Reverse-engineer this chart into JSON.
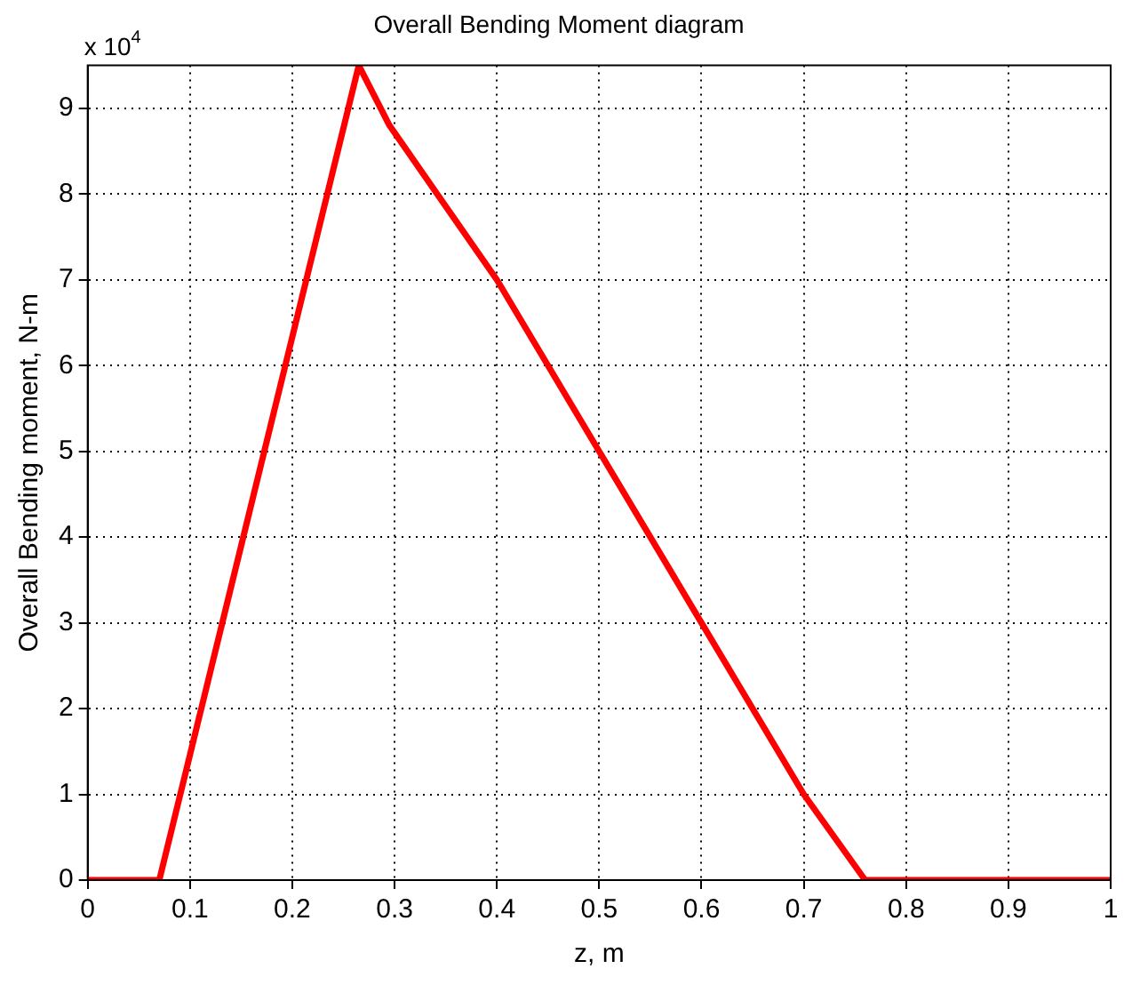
{
  "chart_data": {
    "type": "line",
    "title": "Overall Bending Moment diagram",
    "xlabel": "z, m",
    "ylabel": "Overall Bending moment, N-m",
    "annotations": [
      "x 10$^{4}$"
    ],
    "x": [
      0,
      0.07,
      0.265,
      0.295,
      0.4,
      0.5,
      0.6,
      0.7,
      0.76,
      1
    ],
    "series": [
      {
        "color": "#ff0000",
        "values": [
          0,
          0,
          9.5,
          8.8,
          7,
          5,
          3,
          1,
          0,
          0
        ]
      }
    ],
    "xlim": [
      0,
      1
    ],
    "xticks": [
      0,
      0.1,
      0.2,
      0.3,
      0.4,
      0.5,
      0.6,
      0.7,
      0.8,
      0.9,
      1
    ],
    "ylim": [
      0,
      9.5
    ],
    "yticks": [
      0,
      1,
      2,
      3,
      4,
      5,
      6,
      7,
      8,
      9
    ],
    "grid": true,
    "legend": false,
    "marker": "none",
    "line_style": "solid"
  }
}
